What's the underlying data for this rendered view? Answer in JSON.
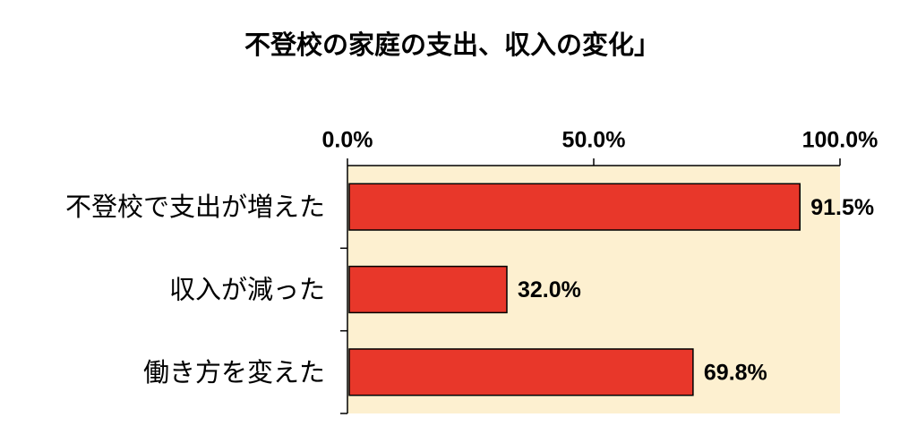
{
  "chart_data": {
    "type": "bar",
    "orientation": "horizontal",
    "title": "不登校の家庭の支出、収入の変化」",
    "categories": [
      "不登校で支出が増えた",
      "収入が減った",
      "働き方を変えた"
    ],
    "values": [
      91.5,
      32.0,
      69.8
    ],
    "value_labels": [
      "91.5%",
      "32.0%",
      "69.8%"
    ],
    "color": "#e8372a",
    "background": "#fdf0d0",
    "xlim": [
      0,
      100
    ],
    "xticks": [
      {
        "value": 0,
        "label": "0.0%"
      },
      {
        "value": 50,
        "label": "50.0%"
      },
      {
        "value": 100,
        "label": "100.0%"
      }
    ]
  }
}
